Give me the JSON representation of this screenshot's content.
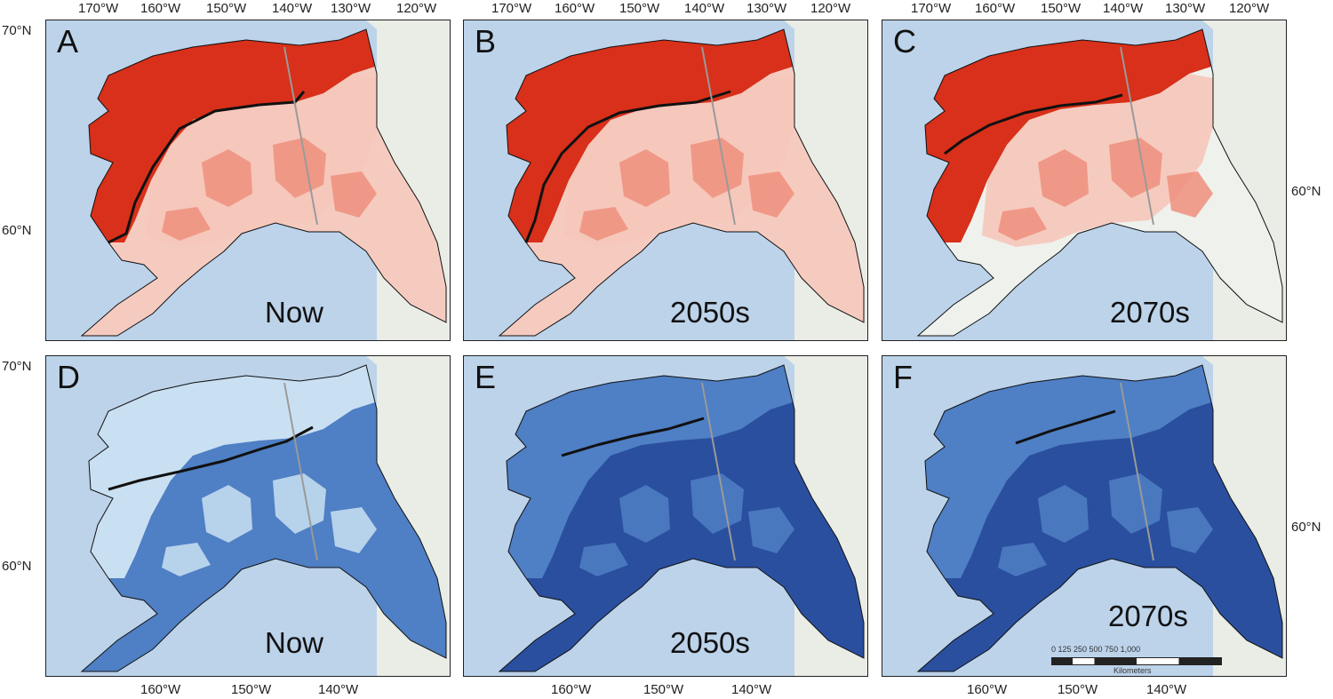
{
  "top_longitudes": [
    "170°W",
    "160°W",
    "150°W",
    "140°W",
    "130°W",
    "120°W"
  ],
  "bottom_longitudes": [
    "160°W",
    "150°W",
    "140°W"
  ],
  "latitudes": {
    "north": "70°N",
    "south": "60°N"
  },
  "panels": [
    {
      "letter": "A",
      "period": "Now",
      "theme": "red",
      "stage": 0
    },
    {
      "letter": "B",
      "period": "2050s",
      "theme": "red",
      "stage": 1
    },
    {
      "letter": "C",
      "period": "2070s",
      "theme": "red",
      "stage": 2
    },
    {
      "letter": "D",
      "period": "Now",
      "theme": "blue",
      "stage": 0
    },
    {
      "letter": "E",
      "period": "2050s",
      "theme": "blue",
      "stage": 1
    },
    {
      "letter": "F",
      "period": "2070s",
      "theme": "blue",
      "stage": 2
    }
  ],
  "scale_bar": {
    "ticks": "0  125 250      500       750      1,000",
    "unit": "Kilometers"
  },
  "colors": {
    "ocean": "#bcd3ea",
    "land": "#eef1ec",
    "canada_land": "#e9ede6",
    "red_strong": "#d8301a",
    "red_mid": "#ee8f7c",
    "red_light": "#f6c6ba",
    "blue_light": "#c9e0f2",
    "blue_mid": "#4f7fc4",
    "blue_dark": "#2a4f9f",
    "contour": "#111111",
    "border": "#9a9a9a"
  }
}
